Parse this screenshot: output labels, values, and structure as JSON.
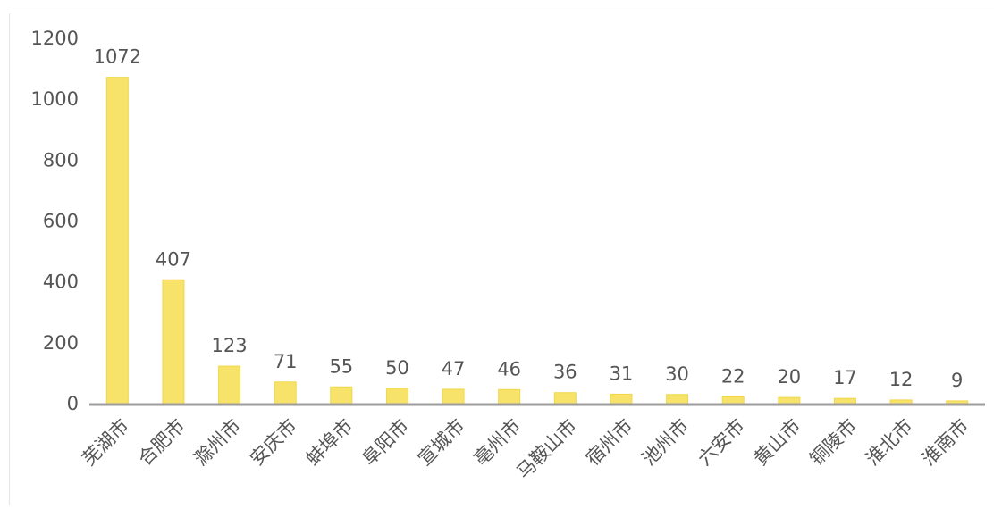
{
  "chart_data": {
    "type": "bar",
    "categories": [
      "芜湖市",
      "合肥市",
      "滁州市",
      "安庆市",
      "蚌埠市",
      "阜阳市",
      "宣城市",
      "亳州市",
      "马鞍山市",
      "宿州市",
      "池州市",
      "六安市",
      "黄山市",
      "铜陵市",
      "淮北市",
      "淮南市"
    ],
    "values": [
      1072,
      407,
      123,
      71,
      55,
      50,
      47,
      46,
      36,
      31,
      30,
      22,
      20,
      17,
      12,
      9
    ],
    "data_labels": [
      "1072",
      "407",
      "123",
      "71",
      "55",
      "50",
      "47",
      "46",
      "36",
      "31",
      "30",
      "22",
      "20",
      "17",
      "12",
      "9"
    ],
    "yticks": [
      "0",
      "200",
      "400",
      "600",
      "800",
      "1000",
      "1200"
    ],
    "ylim": [
      0,
      1200
    ],
    "title": "",
    "xlabel": "",
    "ylabel": "",
    "grid": false,
    "colors": {
      "bar": "#f7e36a",
      "bar_edge": "#efd748",
      "axis": "#9e9e9e",
      "text": "#555555"
    }
  }
}
